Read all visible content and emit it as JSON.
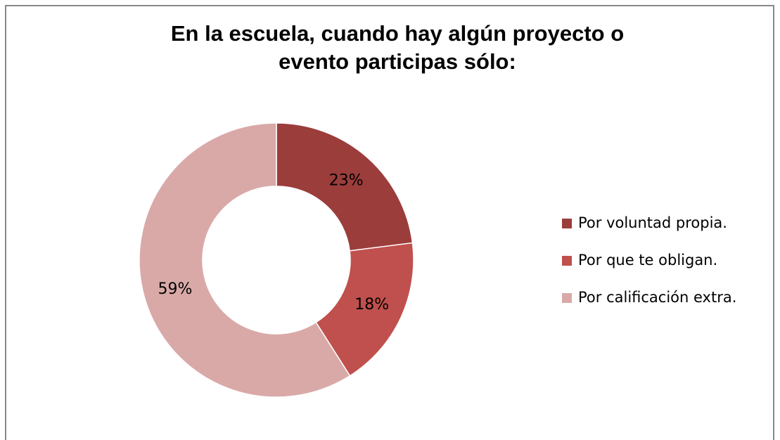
{
  "chart_data": {
    "type": "donut",
    "title": [
      "En la escuela, cuando hay algún proyecto o",
      "evento participas sólo:"
    ],
    "categories": [
      "Por voluntad propia.",
      "Por que te obligan.",
      "Por calificación extra."
    ],
    "values": [
      23,
      18,
      59
    ],
    "value_labels": [
      "23%",
      "18%",
      "59%"
    ],
    "colors": [
      "#9b3d3b",
      "#c0504d",
      "#d9a9a8"
    ],
    "legend": "right"
  }
}
